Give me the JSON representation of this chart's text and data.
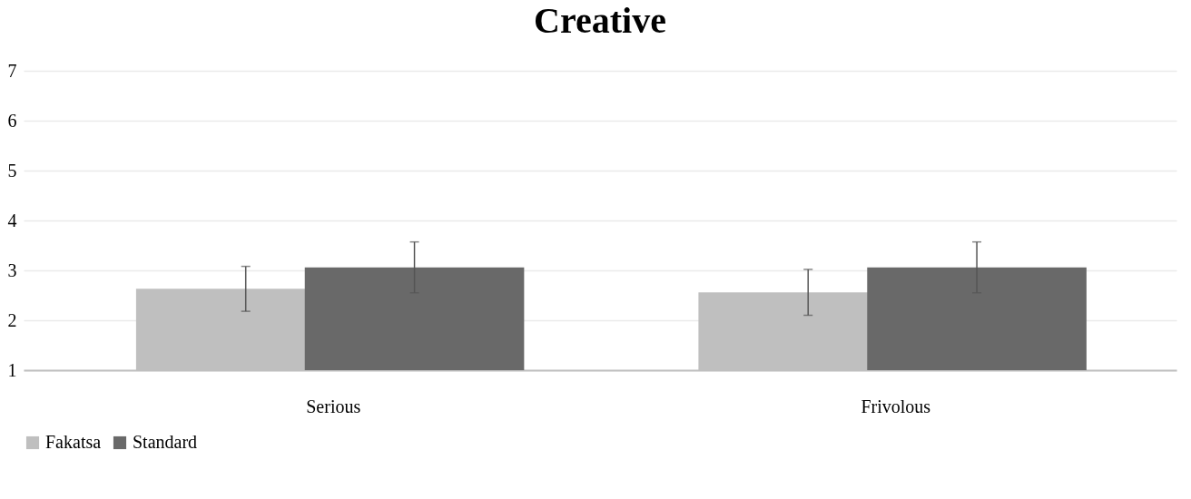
{
  "chart_data": {
    "type": "bar",
    "title": "Creative",
    "categories": [
      "Serious",
      "Frivolous"
    ],
    "series": [
      {
        "name": "Fakatsa",
        "color": "#bfbfbf",
        "values": [
          2.63,
          2.56
        ],
        "errors": [
          0.45,
          0.46
        ]
      },
      {
        "name": "Standard",
        "color": "#696969",
        "values": [
          3.06,
          3.06
        ],
        "errors": [
          0.51,
          0.51
        ]
      }
    ],
    "ylim": [
      1,
      7
    ],
    "yticks": [
      1,
      2,
      3,
      4,
      5,
      6,
      7
    ],
    "grid": "y",
    "legend": "bottom"
  }
}
